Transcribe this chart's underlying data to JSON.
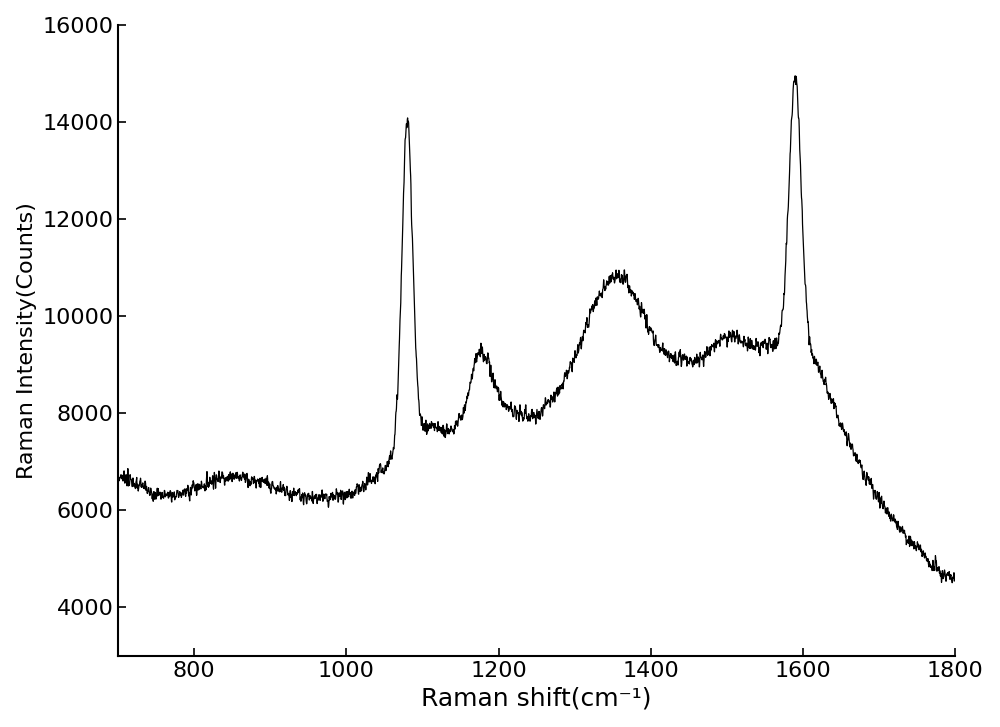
{
  "title": "",
  "xlabel": "Raman shift(cm⁻¹)",
  "ylabel": "Raman Intensity(Counts)",
  "xlim": [
    700,
    1800
  ],
  "ylim": [
    3000,
    16000
  ],
  "xticks": [
    800,
    1000,
    1200,
    1400,
    1600,
    1800
  ],
  "yticks": [
    4000,
    6000,
    8000,
    10000,
    12000,
    14000,
    16000
  ],
  "line_color": "#000000",
  "line_width": 0.9,
  "background_color": "#ffffff",
  "xlabel_fontsize": 18,
  "ylabel_fontsize": 16,
  "tick_fontsize": 16
}
